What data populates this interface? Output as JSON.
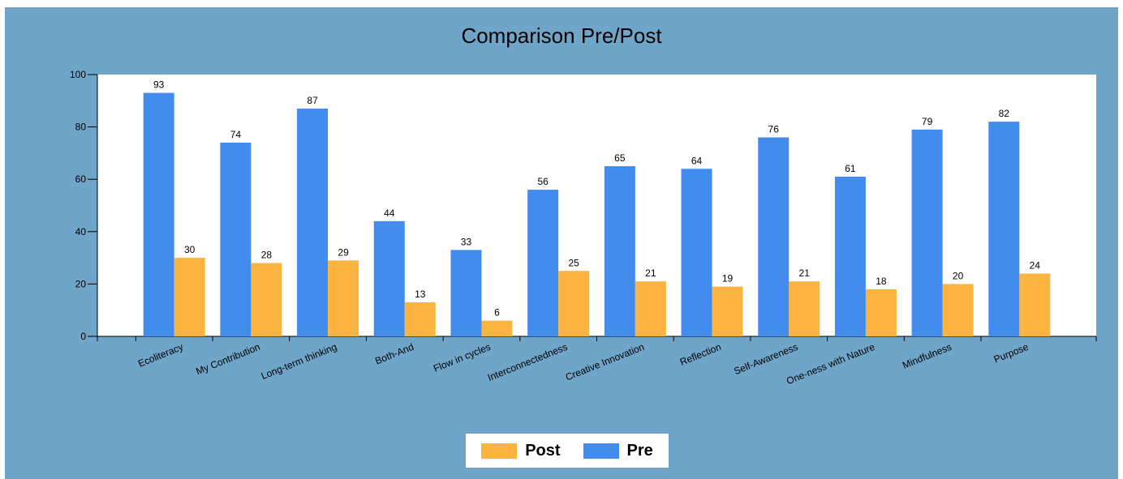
{
  "chart_data": {
    "type": "bar",
    "title": "Comparison Pre/Post",
    "categories": [
      "Ecoliteracy",
      "My Contribution",
      "Long-term thinking",
      "Both-And",
      "Flow in cycles",
      "Interconnectedness",
      "Creative Innovation",
      "Reflection",
      "Self-Awareness",
      "One-ness with Nature",
      "Mindfulness",
      "Purpose"
    ],
    "series": [
      {
        "name": "Pre",
        "color": "#428ced",
        "values": [
          93,
          74,
          87,
          44,
          33,
          56,
          65,
          64,
          76,
          61,
          79,
          82
        ]
      },
      {
        "name": "Post",
        "color": "#fbb440",
        "values": [
          30,
          28,
          29,
          13,
          6,
          25,
          21,
          19,
          21,
          18,
          20,
          24
        ]
      }
    ],
    "ylim": [
      0,
      100
    ],
    "yticks": [
      0,
      20,
      40,
      60,
      80,
      100
    ],
    "xlabel": "",
    "ylabel": "",
    "grid": false,
    "legend_position": "bottom-center",
    "legend_order": [
      "Post",
      "Pre"
    ],
    "colors": {
      "background": "#6fa5c9",
      "plot_area": "#ffffff"
    }
  }
}
